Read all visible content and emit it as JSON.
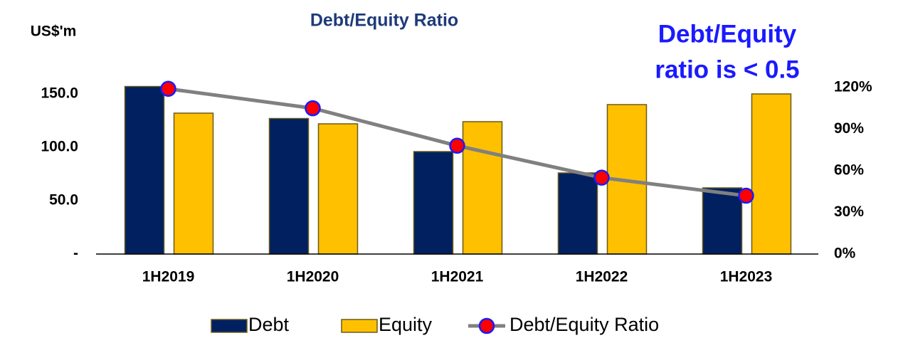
{
  "chart_data": {
    "type": "bar_line",
    "title": "Debt/Equity Ratio",
    "y_label": "US$'m",
    "annotation": [
      "Debt/Equity",
      "ratio is < 0.5"
    ],
    "categories": [
      "1H2019",
      "1H2020",
      "1H2021",
      "1H2022",
      "1H2023"
    ],
    "series": [
      {
        "name": "Debt",
        "color": "#002060",
        "values": [
          157,
          127,
          96,
          76,
          62
        ]
      },
      {
        "name": "Equity",
        "color": "#FFC000",
        "values": [
          132,
          122,
          124,
          140,
          150
        ]
      },
      {
        "name": "Debt/Equity Ratio",
        "color": "#808080",
        "axis": "y2",
        "values": [
          119,
          105,
          78,
          55,
          42
        ]
      }
    ],
    "ylim": [
      0,
      160
    ],
    "yticks": [
      {
        "value": 0,
        "label": "-"
      },
      {
        "value": 50,
        "label": "50.0"
      },
      {
        "value": 100,
        "label": "100.0"
      },
      {
        "value": 150,
        "label": "150.0"
      }
    ],
    "y2lim": [
      0,
      123
    ],
    "y2ticks": [
      {
        "value": 0,
        "label": "0%"
      },
      {
        "value": 30,
        "label": "30%"
      },
      {
        "value": 60,
        "label": "60%"
      },
      {
        "value": 90,
        "label": "90%"
      },
      {
        "value": 120,
        "label": "120%"
      }
    ],
    "grid": false,
    "legend": "bottom"
  }
}
